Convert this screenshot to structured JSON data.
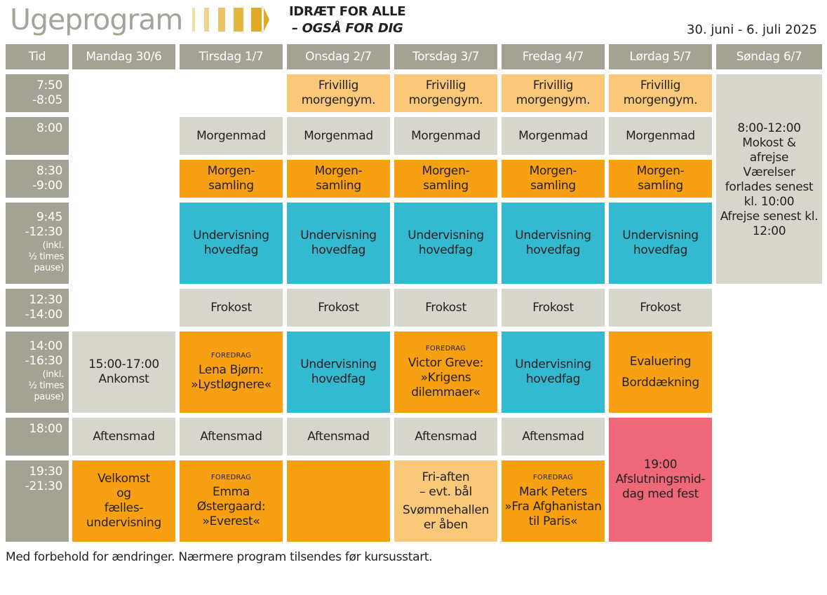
{
  "header": {
    "title": "Ugeprogram",
    "tagline_line1": "IDRÆT FOR ALLE",
    "tagline_line2": "– OGSÅ FOR DIG",
    "date_range": "30. juni - 6. juli 2025",
    "chevron_colors": [
      "#f3dfa6",
      "#efd28e",
      "#ebc46a",
      "#e5b640",
      "#deaa27"
    ]
  },
  "columns": {
    "time": "Tid",
    "mon": "Mandag 30/6",
    "tue": "Tirsdag 1/7",
    "wed": "Onsdag 2/7",
    "thu": "Torsdag 3/7",
    "fri": "Fredag 4/7",
    "sat": "Lørdag 5/7",
    "sun": "Søndag 6/7"
  },
  "times": {
    "r1": {
      "l1": "7:50",
      "l2": "-8:05"
    },
    "r2": {
      "l1": "8:00"
    },
    "r3": {
      "l1": "8:30",
      "l2": "-9:00"
    },
    "r4": {
      "l1": "9:45",
      "l2": "-12:30",
      "note1": "(inkl.",
      "note2": "½ times",
      "note3": "pause)"
    },
    "r5": {
      "l1": "12:30",
      "l2": "-14:00"
    },
    "r6": {
      "l1": "14:00",
      "l2": "-16:30",
      "note1": "(inkl.",
      "note2": "½ times",
      "note3": "pause)"
    },
    "r7": {
      "l1": "18:00"
    },
    "r8": {
      "l1": "19:30",
      "l2": "-21:30"
    }
  },
  "events": {
    "gym": {
      "l1": "Frivillig",
      "l2": "morgengym."
    },
    "breakfast": "Morgenmad",
    "assembly": {
      "l1": "Morgen-",
      "l2": "samling"
    },
    "teaching": {
      "l1": "Undervisning",
      "l2": "hovedfag"
    },
    "lunch": "Frokost",
    "dinner": "Aftensmad",
    "lecture_label": "FOREDRAG",
    "sunday": {
      "l1": "8:00-12:00",
      "l2": "Mokost &",
      "l3": "afrejse",
      "l4": "Værelser",
      "l5": "forlades senest",
      "l6": "kl. 10:00",
      "l7": "Afrejse senest kl.",
      "l8": "12:00"
    },
    "arrival": {
      "l1": "15:00-17:00",
      "l2": "Ankomst"
    },
    "tue_lecture": {
      "l1": "Lena Bjørn:",
      "l2": "»Lystløgnere«"
    },
    "thu_lecture": {
      "l1": "Victor Greve:",
      "l2": "»Krigens",
      "l3": "dilemmaer«"
    },
    "sat_afternoon": {
      "l1": "Evaluering",
      "l2": "Borddækning"
    },
    "sat_evening": {
      "l1": "19:00",
      "l2": "Afslutningsmid-",
      "l3": "dag med fest"
    },
    "mon_evening": {
      "l1": "Velkomst",
      "l2": "og",
      "l3": "fælles-",
      "l4": "undervisning"
    },
    "tue_evening": {
      "l1": "Emma",
      "l2": "Østergaard:",
      "l3": "»Everest«"
    },
    "thu_evening": {
      "l1": "Fri-aften",
      "l2": "– evt. bål",
      "l3": "Svømmehallen",
      "l4": "er åben"
    },
    "fri_evening": {
      "l1": "Mark Peters",
      "l2": "»Fra Afghanistan",
      "l3": "til Paris«"
    }
  },
  "footer": "Med forbehold for ændringer. Nærmere program tilsendes før kursusstart."
}
